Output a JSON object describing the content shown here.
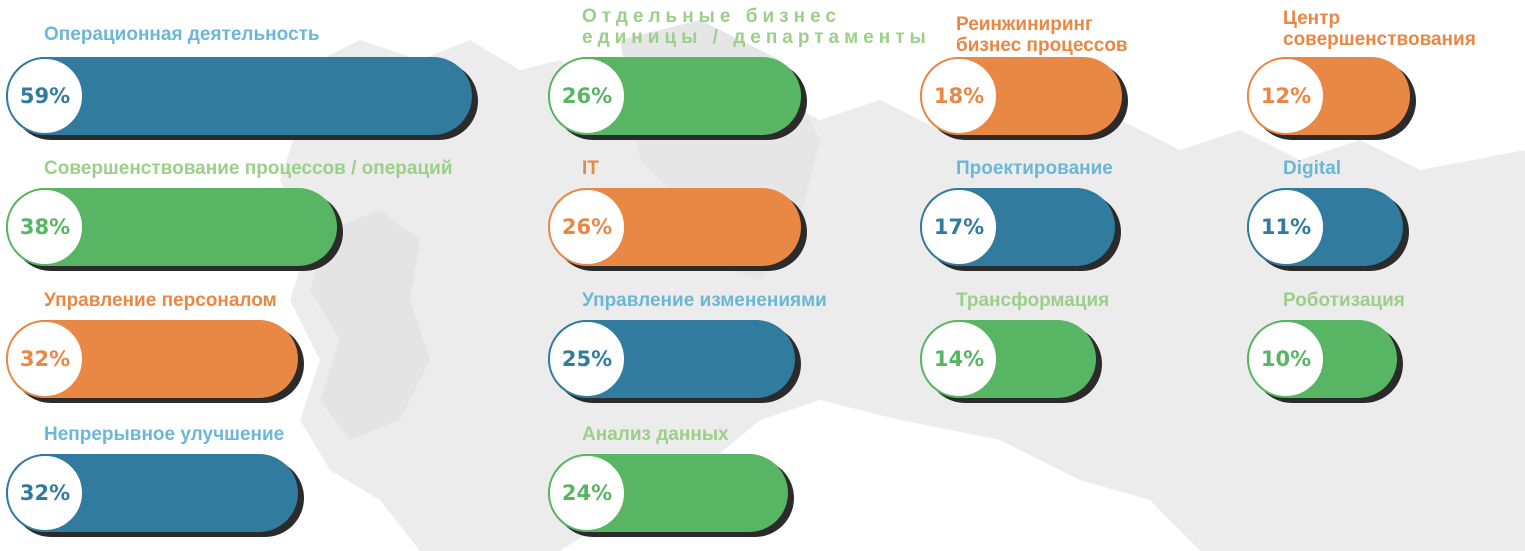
{
  "chart_data": {
    "type": "bar",
    "categories": [
      "Операционная деятельность",
      "Совершенствование процессов / операций",
      "Управление персоналом",
      "Непрерывное улучшение",
      "Отдельные бизнес\nединицы / департаменты",
      "IT",
      "Управление изменениями",
      "Анализ данных",
      "Реинжиниринг\nбизнес процессов",
      "Проектирование",
      "Трансформация",
      "Центр\nсовершенствования",
      "Digital",
      "Роботизация"
    ],
    "values": [
      59,
      38,
      32,
      32,
      26,
      26,
      25,
      24,
      18,
      17,
      14,
      12,
      11,
      10
    ],
    "value_labels": [
      "59%",
      "38%",
      "32%",
      "32%",
      "26%",
      "26%",
      "25%",
      "24%",
      "18%",
      "17%",
      "14%",
      "12%",
      "11%",
      "10%"
    ],
    "colors": [
      "blue",
      "green",
      "orange",
      "blue",
      "green",
      "orange",
      "blue",
      "green",
      "orange",
      "blue",
      "green",
      "orange",
      "blue",
      "green"
    ],
    "xlim": [
      0,
      59
    ]
  },
  "palette": {
    "blue": "#317b9e",
    "green": "#57b563",
    "orange": "#e98744",
    "shadow": "#2b2b2b",
    "map": "#ececec"
  }
}
